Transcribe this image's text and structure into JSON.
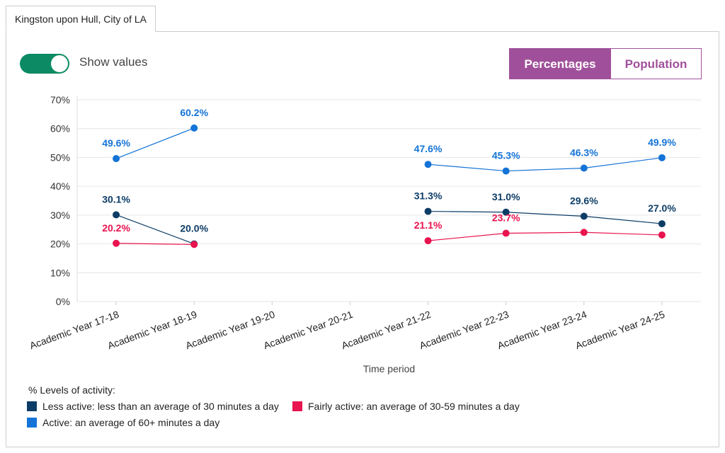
{
  "tab": {
    "label": "Kingston upon Hull, City of LA"
  },
  "controls": {
    "show_values_label": "Show values",
    "show_values_on": true,
    "percentages_label": "Percentages",
    "population_label": "Population",
    "active_view": "Percentages"
  },
  "chart_data": {
    "type": "line",
    "xlabel": "Time period",
    "ylabel": "",
    "ylim": [
      0,
      70
    ],
    "yticks": [
      "0%",
      "10%",
      "20%",
      "30%",
      "40%",
      "50%",
      "60%",
      "70%"
    ],
    "grid": true,
    "categories": [
      "Academic Year 17-18",
      "Academic Year 18-19",
      "Academic Year 19-20",
      "Academic Year 20-21",
      "Academic Year 21-22",
      "Academic Year 22-23",
      "Academic Year 23-24",
      "Academic Year 24-25"
    ],
    "legend_title": "% Levels of activity:",
    "legend_position": "bottom-left",
    "series": [
      {
        "name": "Less active: less than an average of 30 minutes a day",
        "color": "#0d3d66",
        "values": [
          30.1,
          20.0,
          null,
          null,
          31.3,
          31.0,
          29.6,
          27.0
        ],
        "labels": [
          "30.1%",
          "20.0%",
          "",
          "",
          "31.3%",
          "31.0%",
          "29.6%",
          "27.0%"
        ]
      },
      {
        "name": "Fairly active: an average of 30-59 minutes a day",
        "color": "#e8134f",
        "values": [
          20.2,
          19.8,
          null,
          null,
          21.1,
          23.7,
          24.0,
          23.1
        ],
        "labels": [
          "20.2%",
          "",
          "",
          "",
          "21.1%",
          "23.7%",
          "",
          ""
        ]
      },
      {
        "name": "Active: an average of 60+ minutes a day",
        "color": "#1473d6",
        "values": [
          49.6,
          60.2,
          null,
          null,
          47.6,
          45.3,
          46.3,
          49.9
        ],
        "labels": [
          "49.6%",
          "60.2%",
          "",
          "",
          "47.6%",
          "45.3%",
          "46.3%",
          "49.9%"
        ]
      }
    ]
  }
}
